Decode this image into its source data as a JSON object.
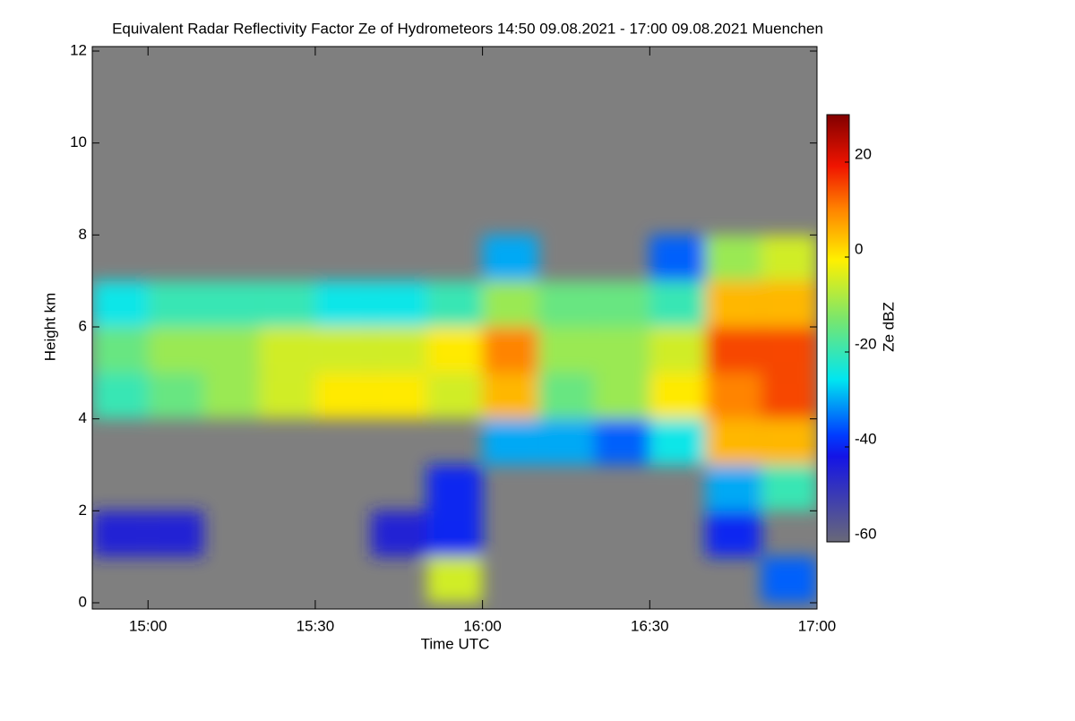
{
  "chart_data": {
    "type": "heatmap",
    "title": "Equivalent Radar Reflectivity Factor Ze of Hydrometeors   14:50 09.08.2021 - 17:00 09.08.2021 Muenchen",
    "xlabel": "Time UTC",
    "ylabel": "Height km",
    "colorbar_label": "Ze dBZ",
    "x": [
      895,
      905,
      915,
      925,
      935,
      945,
      955,
      965,
      975,
      985,
      995,
      1005,
      1015
    ],
    "y": [
      0.5,
      1.5,
      2.5,
      3.5,
      4.5,
      5.5,
      6.5,
      7.5
    ],
    "z": [
      [
        null,
        null,
        null,
        null,
        null,
        null,
        -5,
        null,
        null,
        null,
        null,
        null,
        -35
      ],
      [
        -45,
        -45,
        null,
        null,
        null,
        -45,
        -40,
        null,
        null,
        null,
        null,
        -40,
        null
      ],
      [
        null,
        null,
        null,
        null,
        null,
        null,
        -40,
        null,
        null,
        null,
        null,
        -30,
        -20
      ],
      [
        null,
        null,
        null,
        null,
        null,
        null,
        null,
        -30,
        -30,
        -35,
        -25,
        5,
        5
      ],
      [
        -20,
        -15,
        -10,
        -5,
        0,
        0,
        -5,
        5,
        -15,
        -10,
        0,
        10,
        15
      ],
      [
        -15,
        -10,
        -10,
        -5,
        -5,
        -5,
        0,
        10,
        -10,
        -10,
        -5,
        15,
        15
      ],
      [
        -25,
        -20,
        -20,
        -20,
        -25,
        -25,
        -20,
        -10,
        -15,
        -15,
        -20,
        5,
        5
      ],
      [
        null,
        null,
        null,
        null,
        null,
        null,
        null,
        -30,
        null,
        null,
        -35,
        -10,
        -5
      ]
    ],
    "xlim": [
      890,
      1020
    ],
    "xticks": [
      {
        "value": 900,
        "label": "15:00"
      },
      {
        "value": 930,
        "label": "15:30"
      },
      {
        "value": 960,
        "label": "16:00"
      },
      {
        "value": 990,
        "label": "16:30"
      },
      {
        "value": 1020,
        "label": "17:00"
      }
    ],
    "ylim": [
      0,
      12
    ],
    "yticks": [
      0,
      2,
      4,
      6,
      8,
      10,
      12
    ],
    "zlim": [
      -60,
      30
    ],
    "zticks": [
      -60,
      -40,
      -20,
      0,
      20
    ],
    "background_color": "#7f7f7f"
  }
}
